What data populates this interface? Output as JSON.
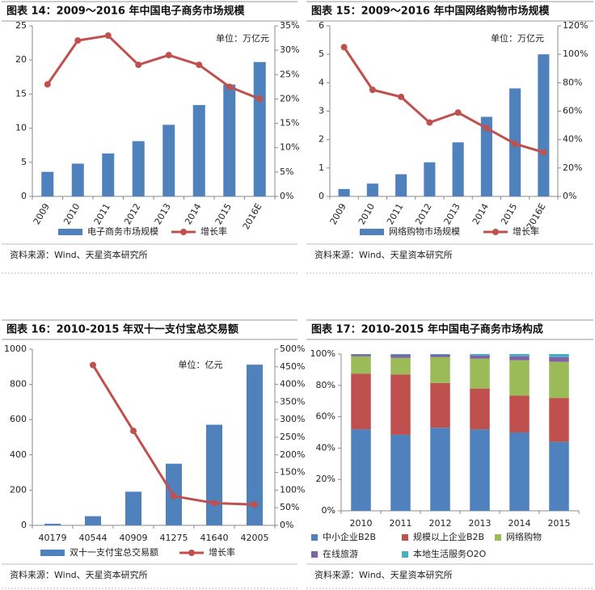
{
  "chart_data": [
    {
      "type": "combo",
      "title": "图表 14：2009～2016 年中国电子商务市场规模",
      "annotation": "单位：万亿元",
      "source": "资料来源：Wind、天星资本研究所",
      "categories": [
        "2009",
        "2010",
        "2011",
        "2012",
        "2013",
        "2014",
        "2015",
        "2016E"
      ],
      "series": [
        {
          "name": "电子商务市场规模",
          "color": "#4f81bd",
          "values": [
            3.6,
            4.8,
            6.3,
            8.1,
            10.5,
            13.4,
            16.4,
            19.7
          ]
        },
        {
          "name": "增长率",
          "color": "#c0504d",
          "axis": "y2",
          "values": [
            23,
            32,
            33,
            27,
            29,
            27,
            22.5,
            20
          ]
        }
      ],
      "ylim": [
        0,
        25
      ],
      "yticks": [
        0,
        5,
        10,
        15,
        20,
        25
      ],
      "y2lim": [
        0,
        35
      ],
      "y2ticks": [
        {
          "value": 0,
          "label": "0%"
        },
        {
          "value": 5,
          "label": "5%"
        },
        {
          "value": 10,
          "label": "10%"
        },
        {
          "value": 15,
          "label": "15%"
        },
        {
          "value": 20,
          "label": "20%"
        },
        {
          "value": 25,
          "label": "25%"
        },
        {
          "value": 30,
          "label": "30%"
        },
        {
          "value": 35,
          "label": "35%"
        }
      ]
    },
    {
      "type": "combo",
      "title": "图表 15：2009～2016 年中国网络购物市场规模",
      "annotation": "单位：万亿元",
      "source": "资料来源：Wind、天星资本研究所",
      "categories": [
        "2009",
        "2010",
        "2011",
        "2012",
        "2013",
        "2014",
        "2015",
        "2016E"
      ],
      "series": [
        {
          "name": "网络购物市场规模",
          "color": "#4f81bd",
          "values": [
            0.26,
            0.45,
            0.78,
            1.2,
            1.9,
            2.8,
            3.8,
            5.0
          ]
        },
        {
          "name": "增长率",
          "color": "#c0504d",
          "axis": "y2",
          "values": [
            105,
            75,
            70,
            52,
            59,
            48,
            37,
            31
          ]
        }
      ],
      "ylim": [
        0,
        6
      ],
      "yticks": [
        0,
        1,
        2,
        3,
        4,
        5,
        6
      ],
      "y2lim": [
        0,
        120
      ],
      "y2ticks": [
        {
          "value": 0,
          "label": "0%"
        },
        {
          "value": 20,
          "label": "20%"
        },
        {
          "value": 40,
          "label": "40%"
        },
        {
          "value": 60,
          "label": "60%"
        },
        {
          "value": 80,
          "label": "80%"
        },
        {
          "value": 100,
          "label": "100%"
        },
        {
          "value": 120,
          "label": "120%"
        }
      ]
    },
    {
      "type": "combo",
      "title": "图表 16：2010-2015 年双十一支付宝总交易额",
      "annotation": "单位：亿元",
      "source": "资料来源：Wind、天星资本研究所",
      "categories": [
        "40179",
        "40544",
        "40909",
        "41275",
        "41640",
        "42005"
      ],
      "series": [
        {
          "name": "双十一支付宝总交易额",
          "color": "#4f81bd",
          "values": [
            9,
            52,
            191,
            350,
            571,
            912
          ]
        },
        {
          "name": "增长率",
          "color": "#c0504d",
          "axis": "y2",
          "values": [
            null,
            455,
            268,
            83,
            63,
            59
          ]
        }
      ],
      "ylim": [
        0,
        1000
      ],
      "yticks": [
        0,
        200,
        400,
        600,
        800,
        1000
      ],
      "y2lim": [
        0,
        500
      ],
      "y2ticks": [
        {
          "value": 0,
          "label": "0%"
        },
        {
          "value": 50,
          "label": "50%"
        },
        {
          "value": 100,
          "label": "100%"
        },
        {
          "value": 150,
          "label": "150%"
        },
        {
          "value": 200,
          "label": "200%"
        },
        {
          "value": 250,
          "label": "250%"
        },
        {
          "value": 300,
          "label": "300%"
        },
        {
          "value": 350,
          "label": "350%"
        },
        {
          "value": 400,
          "label": "400%"
        },
        {
          "value": 450,
          "label": "450%"
        },
        {
          "value": 500,
          "label": "500%"
        }
      ]
    },
    {
      "type": "stacked",
      "title": "图表 17：2010-2015 年中国电子商务市场构成",
      "source": "资料来源：Wind、天星资本研究所",
      "categories": [
        "2010",
        "2011",
        "2012",
        "2013",
        "2014",
        "2015"
      ],
      "series": [
        {
          "name": "中小企业B2B",
          "color": "#4f81bd",
          "values": [
            52,
            48.5,
            53,
            52,
            50,
            44
          ]
        },
        {
          "name": "规模以上企业B2B",
          "color": "#c0504d",
          "values": [
            35.5,
            38.5,
            28.5,
            26,
            23.5,
            28
          ]
        },
        {
          "name": "网络购物",
          "color": "#9bbb59",
          "values": [
            11,
            10.5,
            16.5,
            19,
            22.5,
            23
          ]
        },
        {
          "name": "在线旅游",
          "color": "#8064a2",
          "values": [
            1.3,
            2,
            1.5,
            2,
            2.5,
            3
          ]
        },
        {
          "name": "本地生活服务O2O",
          "color": "#4bacc6",
          "values": [
            0.2,
            0.5,
            0.5,
            1,
            1.5,
            2
          ]
        }
      ],
      "ylim": [
        0,
        100
      ],
      "yticks": [
        {
          "value": 0,
          "label": "0%"
        },
        {
          "value": 20,
          "label": "20%"
        },
        {
          "value": 40,
          "label": "40%"
        },
        {
          "value": 60,
          "label": "60%"
        },
        {
          "value": 80,
          "label": "80%"
        },
        {
          "value": 100,
          "label": "100%"
        }
      ]
    }
  ]
}
